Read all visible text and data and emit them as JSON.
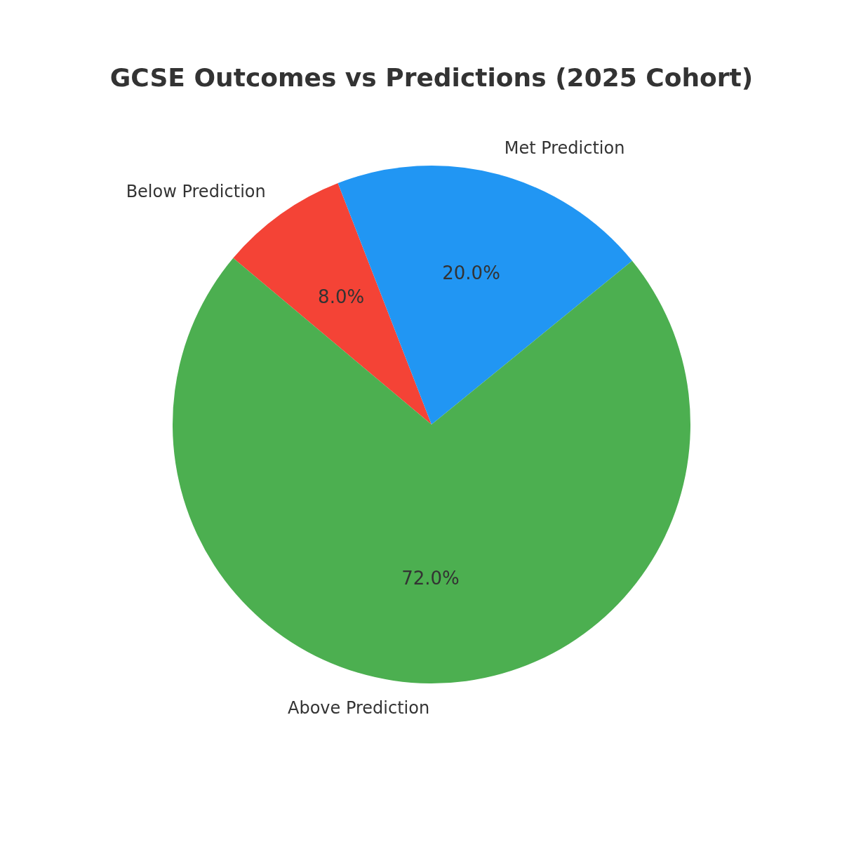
{
  "chart_data": {
    "type": "pie",
    "title": "GCSE Outcomes vs Predictions (2025 Cohort)",
    "categories": [
      "Below Prediction",
      "Met Prediction",
      "Above Prediction"
    ],
    "values": [
      8,
      20,
      72
    ],
    "colors": [
      "#f44336",
      "#2196f3",
      "#4caf50"
    ],
    "value_labels": [
      "8.0%",
      "20.0%",
      "72.0%"
    ],
    "legend": false
  }
}
